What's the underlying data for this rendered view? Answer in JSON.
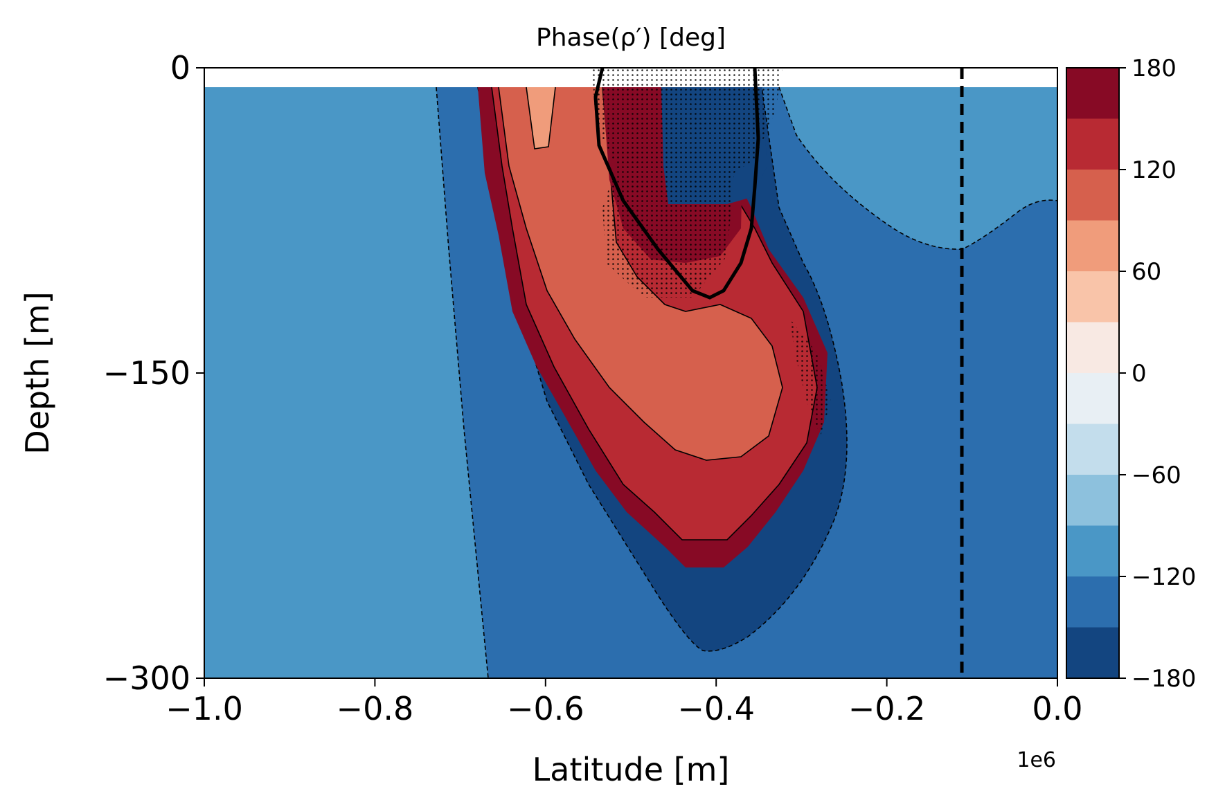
{
  "chart_data": {
    "type": "contour",
    "title": "Phase(ρ′) [deg]",
    "xlabel": "Latitude [m]",
    "ylabel": "Depth [m]",
    "x_offset_label": "1e6",
    "xlim": [
      -1.0,
      0.0
    ],
    "ylim": [
      -300,
      0
    ],
    "x_ticks": [
      -1.0,
      -0.8,
      -0.6,
      -0.4,
      -0.2,
      0.0
    ],
    "x_tick_labels": [
      "−1.0",
      "−0.8",
      "−0.6",
      "−0.4",
      "−0.2",
      "0.0"
    ],
    "y_ticks": [
      0,
      -150,
      -300
    ],
    "y_tick_labels": [
      "0",
      "−150",
      "−300"
    ],
    "colormap": "RdBu_r",
    "colorbar": {
      "range": [
        -180,
        180
      ],
      "ticks": [
        180,
        120,
        60,
        0,
        -60,
        -120,
        -180
      ],
      "tick_labels": [
        "180",
        "120",
        "60",
        "0",
        "−60",
        "−120",
        "−180"
      ],
      "levels": [
        -180,
        -150,
        -120,
        -90,
        -60,
        -30,
        0,
        30,
        60,
        90,
        120,
        150,
        180
      ],
      "colors": [
        "#134580",
        "#2c6eae",
        "#4a97c6",
        "#8dc1dd",
        "#c3ddec",
        "#e8eff4",
        "#f8e9e3",
        "#f9c4a9",
        "#f09c7b",
        "#d6604d",
        "#b82a33",
        "#870a25"
      ]
    },
    "vertical_reference_line_x": -0.112,
    "contour_regions": [
      {
        "phase_deg": -150,
        "description": "lower blue region"
      },
      {
        "phase_deg": -165,
        "description": "deep blue envelope around core"
      },
      {
        "phase_deg": 75,
        "description": "surface core"
      },
      {
        "phase_deg": 105,
        "description": "inner core"
      },
      {
        "phase_deg": 135,
        "description": "outer core band"
      },
      {
        "phase_deg": 165,
        "description": "core rim"
      }
    ]
  }
}
